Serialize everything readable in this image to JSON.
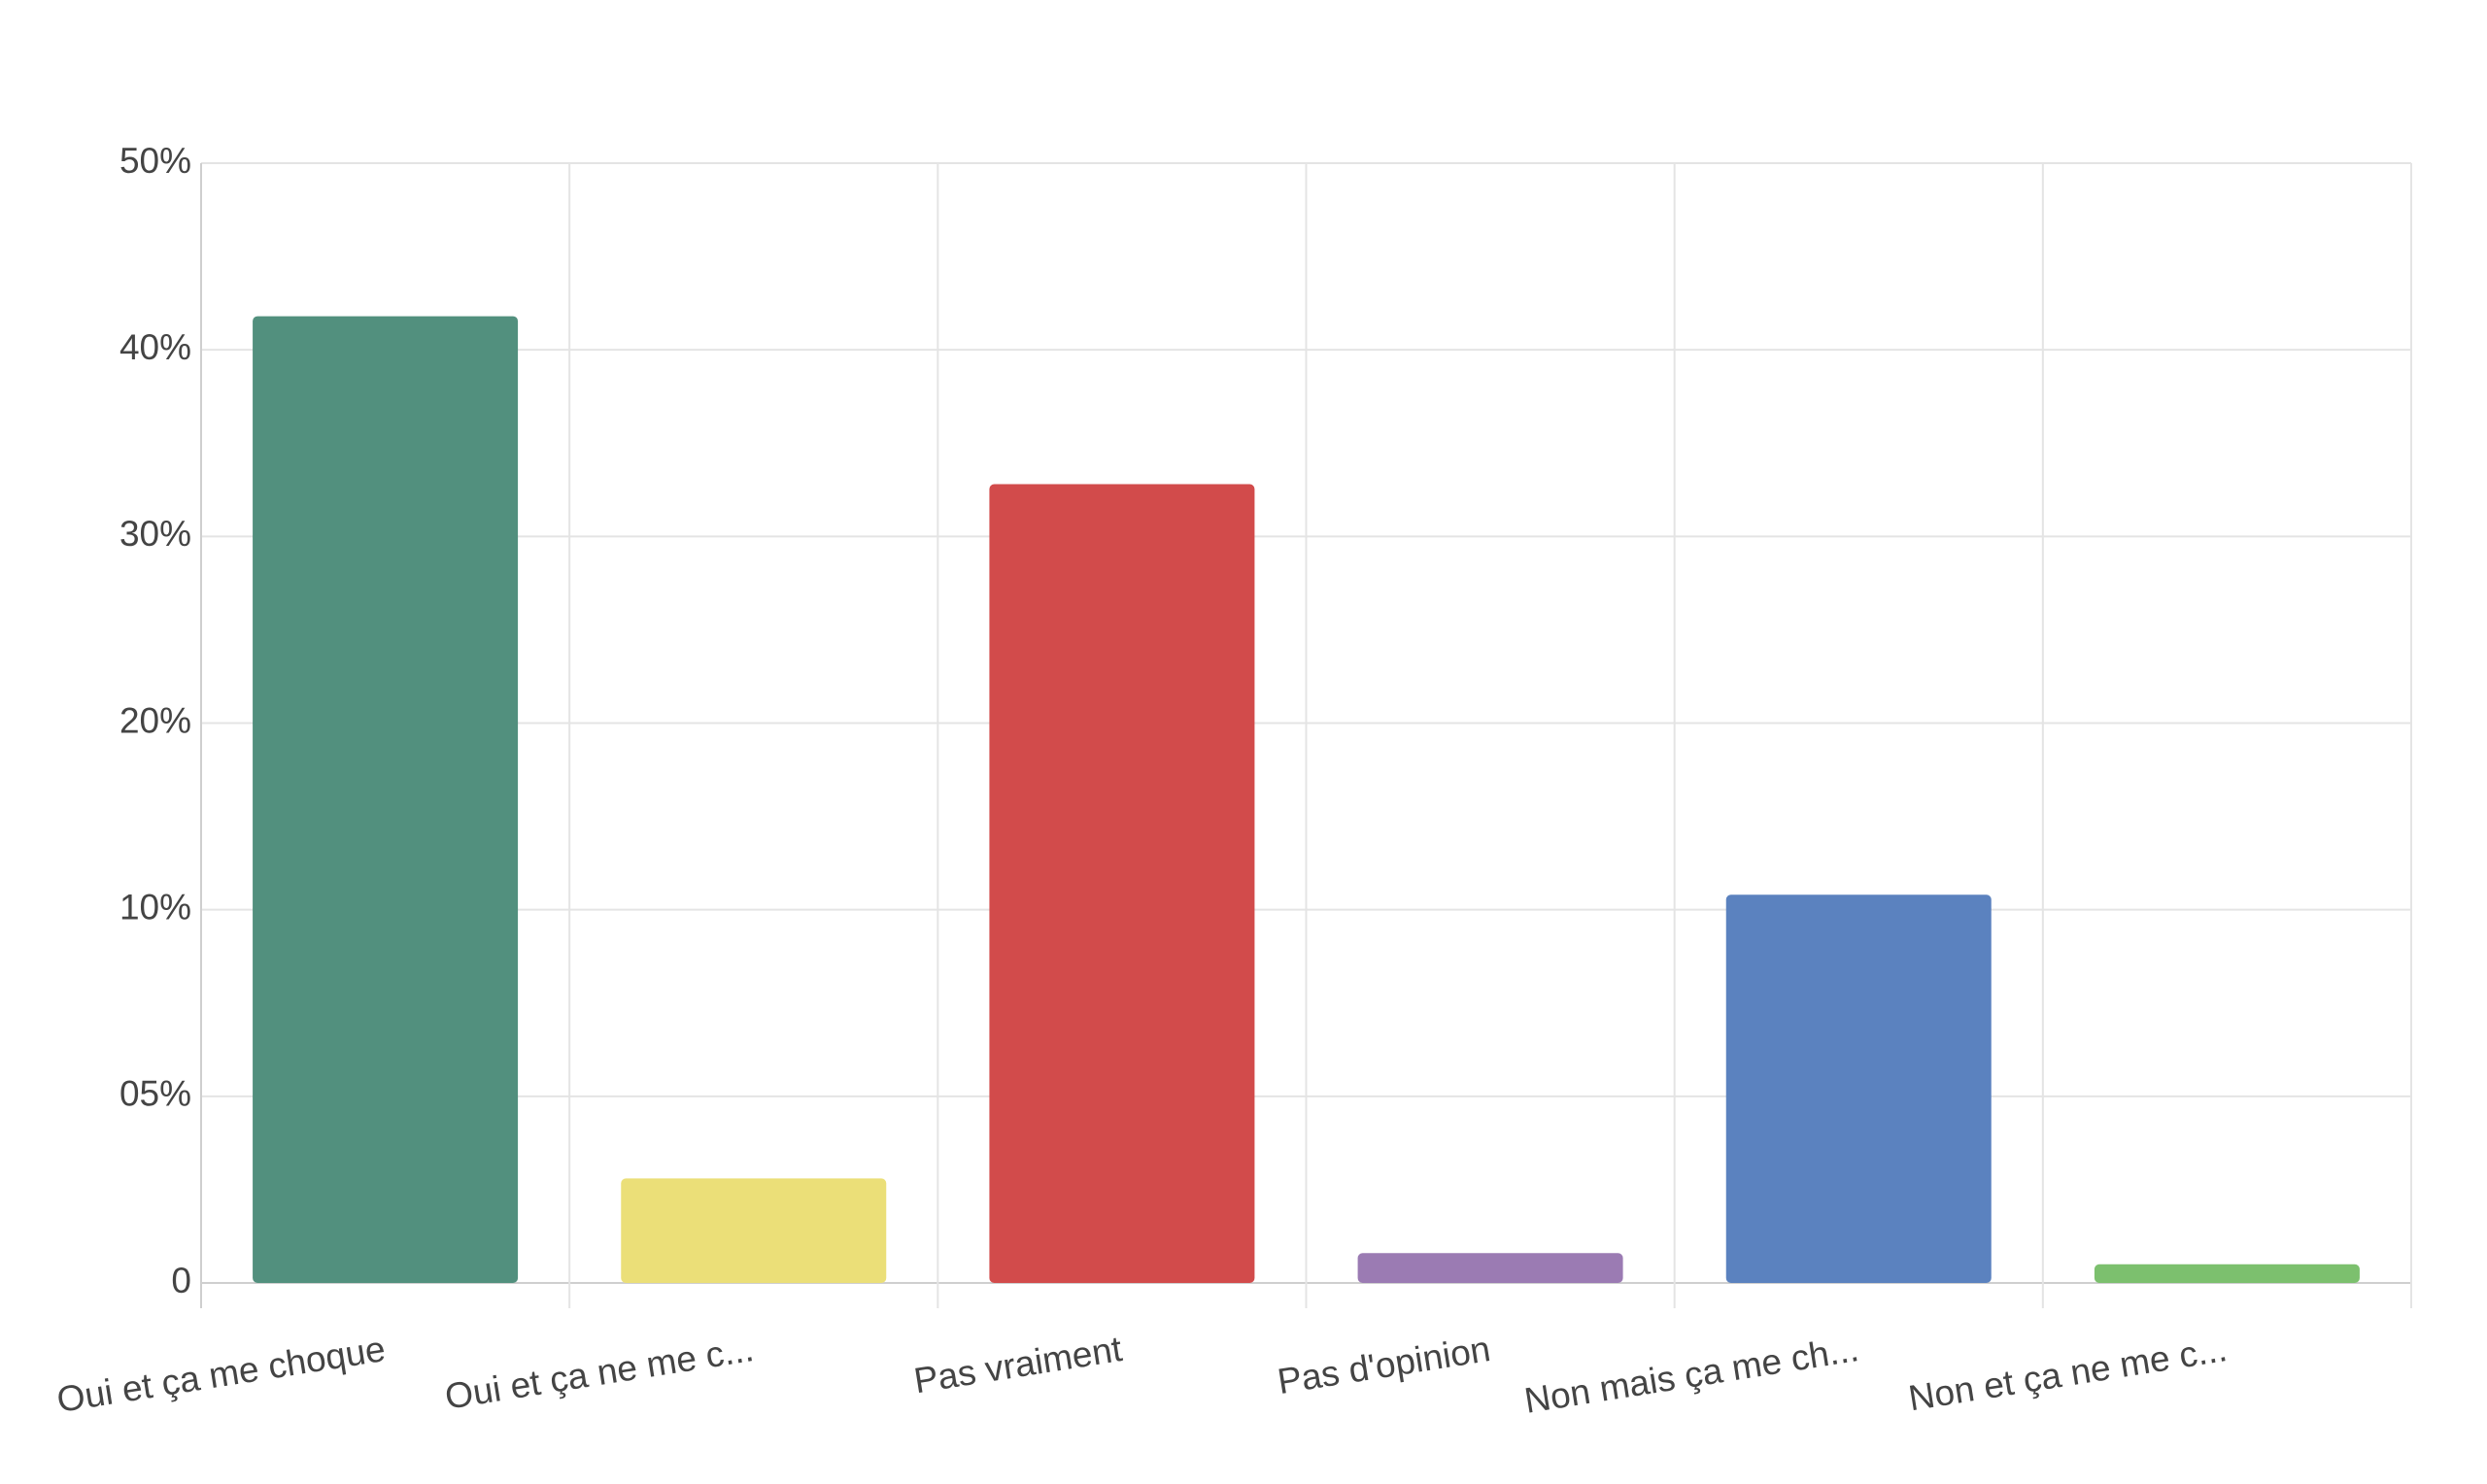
{
  "chart_data": {
    "type": "bar",
    "categories": [
      "Oui et ça me choque",
      "Oui et ça ne me c...",
      "Pas vraiment",
      "Pas d'opinion",
      "Non mais ça me ch...",
      "Non et ça ne me c..."
    ],
    "values": [
      41.8,
      2.8,
      32.8,
      0.8,
      10.8,
      0.5
    ],
    "colors": [
      "#52907e",
      "#ebdf78",
      "#d24b4b",
      "#9b7bb3",
      "#5b82bf",
      "#7cc06e"
    ],
    "ylim": [
      0,
      50
    ],
    "yticks": [
      0,
      {
        "value": 5,
        "label": "05%"
      },
      {
        "value": 10,
        "label": "10%"
      },
      {
        "value": 20,
        "label": "20%"
      },
      {
        "value": 30,
        "label": "30%"
      },
      {
        "value": 40,
        "label": "40%"
      },
      {
        "value": 50,
        "label": "50%"
      }
    ],
    "grid": true
  }
}
